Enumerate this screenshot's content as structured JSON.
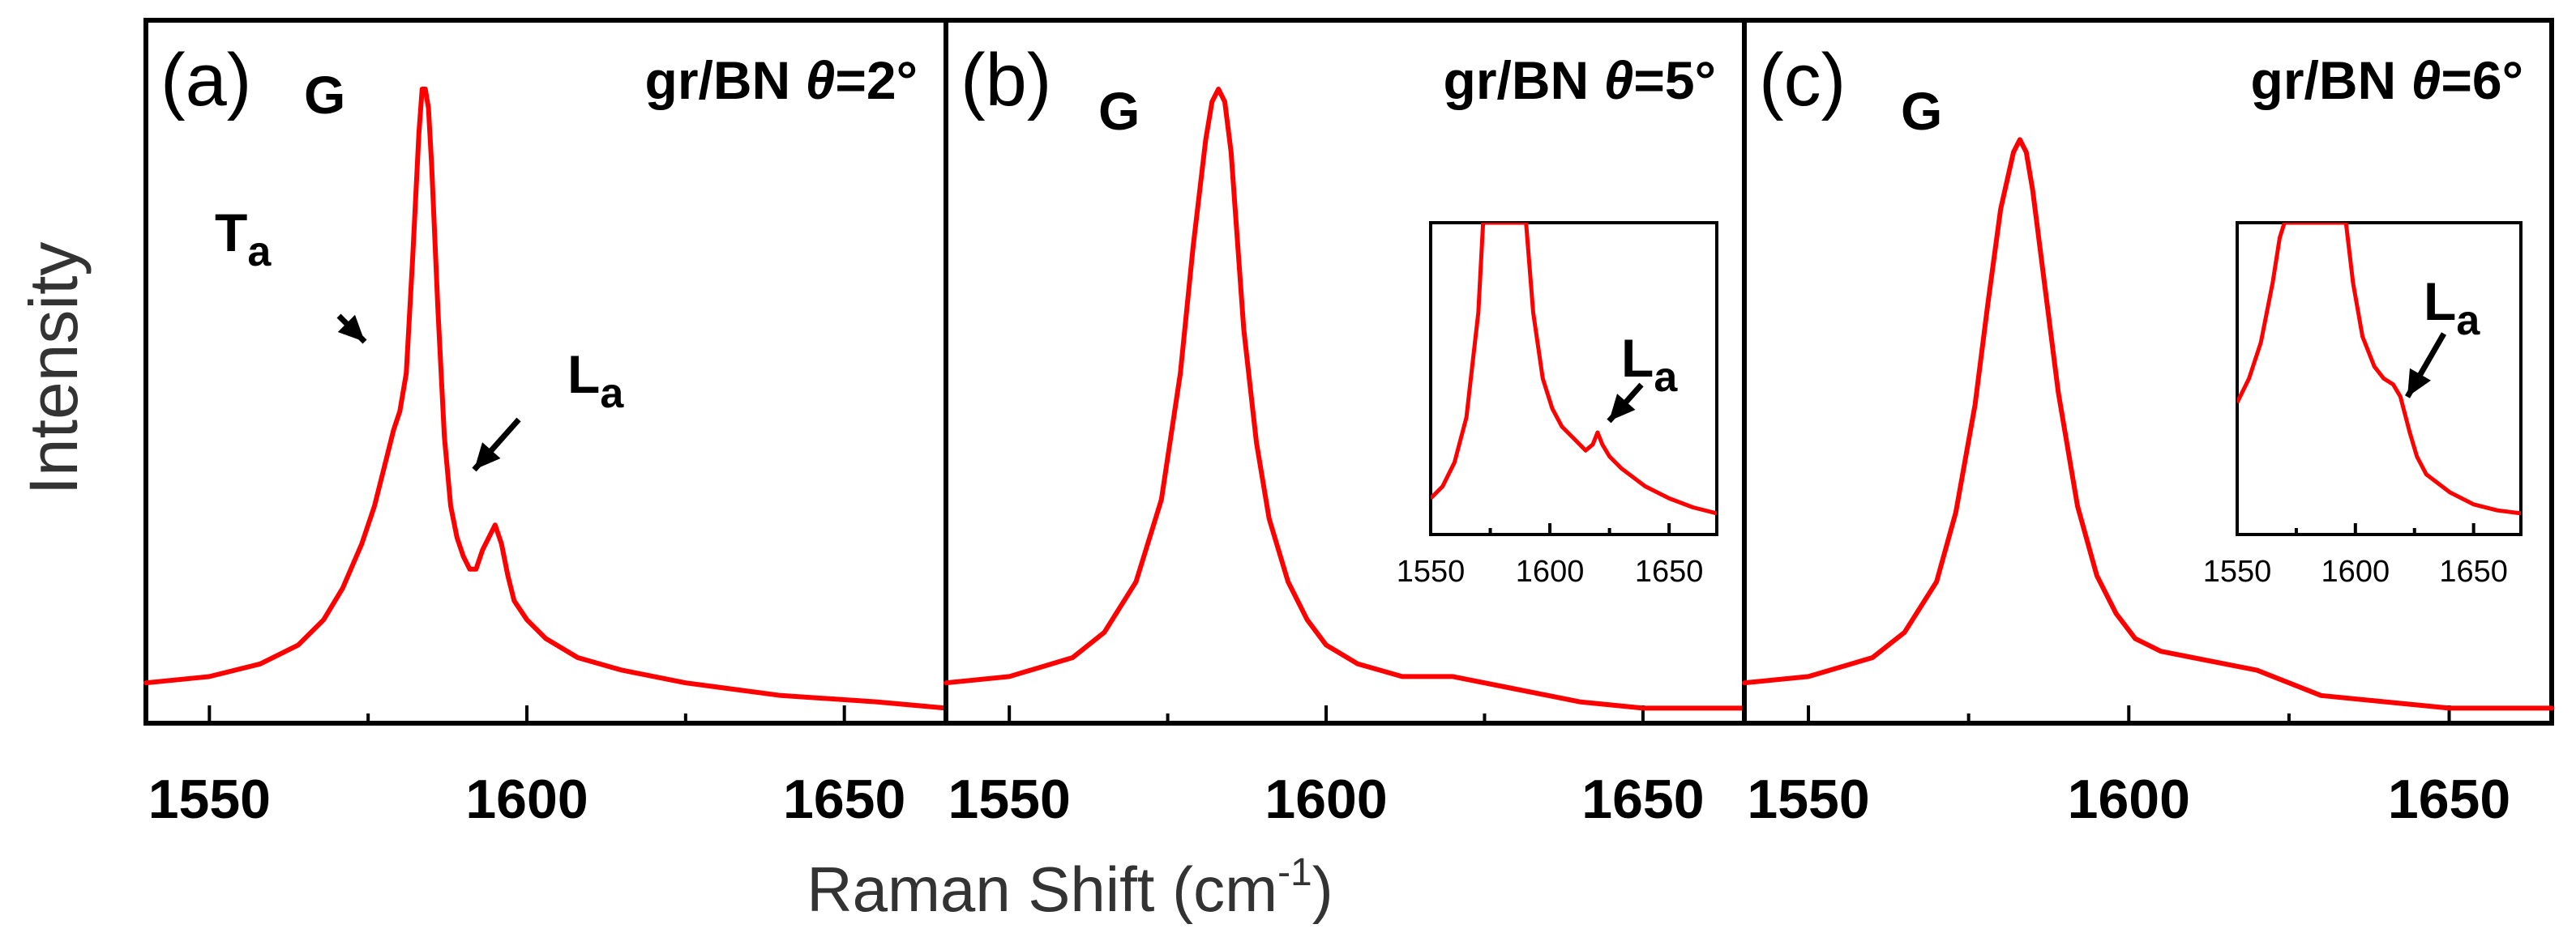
{
  "chart_data": [
    {
      "type": "line",
      "panel": "(a)",
      "peak_label": "G",
      "sample": "gr/BN",
      "angle_symbol": "θ",
      "angle_value": "=2°",
      "xlim": [
        1540,
        1666
      ],
      "xticks": [
        1550,
        1600,
        1650
      ],
      "xtick_labels": [
        "1550",
        "1600",
        "1650"
      ],
      "annotations": [
        {
          "main": "T",
          "sub": "a",
          "x": 1578,
          "y": 0.45
        },
        {
          "main": "L",
          "sub": "a",
          "x": 1595,
          "y": 0.27
        }
      ],
      "series": [
        {
          "name": "gr/BN 2°",
          "color": "#ff0000",
          "x": [
            1540,
            1550,
            1558,
            1564,
            1568,
            1571,
            1574,
            1576,
            1578,
            1579,
            1580,
            1581,
            1582,
            1583,
            1583.5,
            1584,
            1584.5,
            1585,
            1586,
            1587,
            1588,
            1589,
            1590,
            1591,
            1592,
            1593,
            1594,
            1595,
            1596,
            1597,
            1598,
            1600,
            1603,
            1608,
            1615,
            1625,
            1640,
            1655,
            1666
          ],
          "values": [
            0.06,
            0.07,
            0.09,
            0.12,
            0.16,
            0.21,
            0.28,
            0.34,
            0.42,
            0.46,
            0.49,
            0.55,
            0.73,
            0.93,
            1.0,
            1.0,
            0.97,
            0.88,
            0.65,
            0.45,
            0.34,
            0.29,
            0.26,
            0.24,
            0.24,
            0.27,
            0.29,
            0.31,
            0.28,
            0.23,
            0.19,
            0.16,
            0.13,
            0.1,
            0.08,
            0.06,
            0.04,
            0.03,
            0.02
          ]
        }
      ]
    },
    {
      "type": "line",
      "panel": "(b)",
      "peak_label": "G",
      "sample": "gr/BN",
      "angle_symbol": "θ",
      "angle_value": "=5°",
      "xlim": [
        1540,
        1666
      ],
      "xticks": [
        1550,
        1600,
        1650
      ],
      "xtick_labels": [
        "1550",
        "1600",
        "1650"
      ],
      "series": [
        {
          "name": "gr/BN 5°",
          "color": "#ff0000",
          "x": [
            1540,
            1550,
            1560,
            1565,
            1570,
            1574,
            1577,
            1579,
            1581,
            1582,
            1583,
            1584,
            1585,
            1586,
            1587,
            1589,
            1591,
            1594,
            1597,
            1600,
            1605,
            1612,
            1620,
            1630,
            1640,
            1650,
            1666
          ],
          "values": [
            0.06,
            0.07,
            0.1,
            0.14,
            0.22,
            0.35,
            0.55,
            0.75,
            0.92,
            0.98,
            1.0,
            0.98,
            0.9,
            0.76,
            0.62,
            0.44,
            0.32,
            0.22,
            0.16,
            0.12,
            0.09,
            0.07,
            0.07,
            0.05,
            0.03,
            0.02,
            0.02
          ]
        }
      ],
      "inset": {
        "xlim": [
          1550,
          1670
        ],
        "xticks": [
          1550,
          1600,
          1650
        ],
        "xtick_labels": [
          "1550",
          "1600",
          "1650"
        ],
        "annotation": {
          "main": "L",
          "sub": "a",
          "x": 1620
        },
        "x": [
          1550,
          1555,
          1560,
          1565,
          1570,
          1572,
          1590,
          1593,
          1597,
          1601,
          1605,
          1610,
          1615,
          1618,
          1620,
          1622,
          1625,
          1630,
          1640,
          1650,
          1660,
          1670
        ],
        "values": [
          0.08,
          0.12,
          0.2,
          0.35,
          0.7,
          1.0,
          1.0,
          0.7,
          0.48,
          0.38,
          0.32,
          0.28,
          0.24,
          0.26,
          0.3,
          0.26,
          0.22,
          0.18,
          0.12,
          0.08,
          0.05,
          0.03
        ]
      }
    },
    {
      "type": "line",
      "panel": "(c)",
      "peak_label": "G",
      "sample": "gr/BN",
      "angle_symbol": "θ",
      "angle_value": "=6°",
      "xlim": [
        1540,
        1666
      ],
      "xticks": [
        1550,
        1600,
        1650
      ],
      "xtick_labels": [
        "1550",
        "1600",
        "1650"
      ],
      "series": [
        {
          "name": "gr/BN 6°",
          "color": "#ff0000",
          "x": [
            1540,
            1550,
            1560,
            1565,
            1570,
            1573,
            1576,
            1578,
            1580,
            1582,
            1583,
            1584,
            1585,
            1587,
            1589,
            1592,
            1595,
            1598,
            1601,
            1605,
            1610,
            1615,
            1620,
            1625,
            1630,
            1640,
            1650,
            1666
          ],
          "values": [
            0.06,
            0.07,
            0.1,
            0.14,
            0.22,
            0.33,
            0.5,
            0.66,
            0.81,
            0.9,
            0.92,
            0.9,
            0.84,
            0.68,
            0.52,
            0.34,
            0.23,
            0.17,
            0.13,
            0.11,
            0.1,
            0.09,
            0.08,
            0.06,
            0.04,
            0.03,
            0.02,
            0.02
          ]
        }
      ],
      "inset": {
        "xlim": [
          1550,
          1670
        ],
        "xticks": [
          1550,
          1600,
          1650
        ],
        "xtick_labels": [
          "1550",
          "1600",
          "1650"
        ],
        "annotation": {
          "main": "L",
          "sub": "a",
          "x": 1618
        },
        "x": [
          1550,
          1555,
          1560,
          1565,
          1568,
          1570,
          1596,
          1599,
          1603,
          1608,
          1612,
          1616,
          1619,
          1621,
          1623,
          1626,
          1630,
          1640,
          1650,
          1660,
          1670
        ],
        "values": [
          0.4,
          0.48,
          0.6,
          0.8,
          0.95,
          1.0,
          1.0,
          0.8,
          0.62,
          0.52,
          0.48,
          0.46,
          0.42,
          0.36,
          0.3,
          0.22,
          0.16,
          0.1,
          0.06,
          0.04,
          0.03
        ]
      }
    }
  ],
  "axes": {
    "ylabel": "Intensity",
    "xlabel": "Raman Shift (cm",
    "xlabel_sup": "-1",
    "xlabel_end": ")"
  }
}
